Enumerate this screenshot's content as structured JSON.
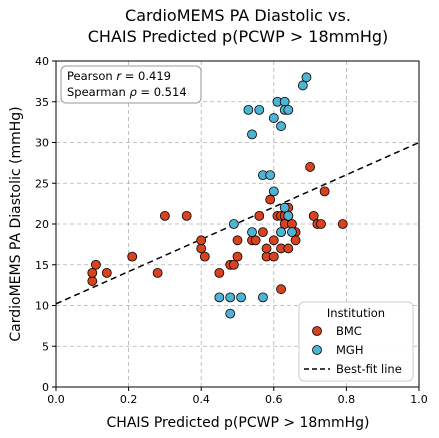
{
  "chart_data": {
    "type": "scatter",
    "title_lines": [
      "CardioMEMS PA Diastolic vs.",
      "CHAIS Predicted p(PCWP > 18mmHg)"
    ],
    "xlabel": "CHAIS Predicted p(PCWP > 18mmHg)",
    "ylabel": "CardioMEMS PA Diastolic (mmHg)",
    "xlim": [
      0.0,
      1.0
    ],
    "ylim": [
      0,
      40
    ],
    "xticks": [
      0.0,
      0.2,
      0.4,
      0.6,
      0.8,
      1.0
    ],
    "xtick_labels": [
      "0.0",
      "0.2",
      "0.4",
      "0.6",
      "0.8",
      "1.0"
    ],
    "yticks": [
      0,
      5,
      10,
      15,
      20,
      25,
      30,
      35,
      40
    ],
    "ytick_labels": [
      "0",
      "5",
      "10",
      "15",
      "20",
      "25",
      "30",
      "35",
      "40"
    ],
    "grid": true,
    "stats": {
      "pearson_prefix": "Pearson ",
      "pearson_symbol": "r",
      "pearson_value": " = 0.419",
      "spearman_prefix": "Spearman ",
      "spearman_symbol": "ρ",
      "spearman_value": " = 0.514"
    },
    "legend": {
      "title": "Institution",
      "placement": "lower-right",
      "entries": [
        "BMC",
        "MGH",
        "Best-fit line"
      ]
    },
    "series": [
      {
        "name": "BMC",
        "color": "#d9421f",
        "points": [
          [
            0.1,
            13
          ],
          [
            0.1,
            14
          ],
          [
            0.11,
            15
          ],
          [
            0.14,
            14
          ],
          [
            0.21,
            16
          ],
          [
            0.28,
            14
          ],
          [
            0.3,
            21
          ],
          [
            0.36,
            21
          ],
          [
            0.4,
            17
          ],
          [
            0.4,
            18
          ],
          [
            0.41,
            16
          ],
          [
            0.45,
            14
          ],
          [
            0.48,
            15
          ],
          [
            0.49,
            15
          ],
          [
            0.5,
            18
          ],
          [
            0.5,
            16
          ],
          [
            0.54,
            18
          ],
          [
            0.55,
            18
          ],
          [
            0.56,
            21
          ],
          [
            0.57,
            19
          ],
          [
            0.58,
            16
          ],
          [
            0.58,
            17
          ],
          [
            0.59,
            23
          ],
          [
            0.6,
            16
          ],
          [
            0.6,
            18
          ],
          [
            0.61,
            21
          ],
          [
            0.62,
            19
          ],
          [
            0.62,
            21
          ],
          [
            0.62,
            17
          ],
          [
            0.62,
            12
          ],
          [
            0.63,
            21
          ],
          [
            0.63,
            20
          ],
          [
            0.64,
            17
          ],
          [
            0.64,
            21
          ],
          [
            0.64,
            22
          ],
          [
            0.65,
            20
          ],
          [
            0.66,
            19
          ],
          [
            0.66,
            18
          ],
          [
            0.7,
            27
          ],
          [
            0.71,
            21
          ],
          [
            0.72,
            20
          ],
          [
            0.73,
            20
          ],
          [
            0.74,
            24
          ],
          [
            0.79,
            20
          ]
        ]
      },
      {
        "name": "MGH",
        "color": "#4fb3d4",
        "points": [
          [
            0.45,
            11
          ],
          [
            0.48,
            11
          ],
          [
            0.48,
            9
          ],
          [
            0.49,
            20
          ],
          [
            0.51,
            11
          ],
          [
            0.53,
            34
          ],
          [
            0.54,
            31
          ],
          [
            0.54,
            19
          ],
          [
            0.56,
            34
          ],
          [
            0.57,
            26
          ],
          [
            0.57,
            11
          ],
          [
            0.59,
            26
          ],
          [
            0.6,
            24
          ],
          [
            0.6,
            33
          ],
          [
            0.61,
            35
          ],
          [
            0.62,
            32
          ],
          [
            0.62,
            19
          ],
          [
            0.63,
            35
          ],
          [
            0.63,
            34
          ],
          [
            0.63,
            22
          ],
          [
            0.64,
            34
          ],
          [
            0.64,
            21
          ],
          [
            0.65,
            19
          ],
          [
            0.68,
            37
          ],
          [
            0.69,
            38
          ]
        ]
      }
    ],
    "fit_line": {
      "name": "Best-fit line",
      "intercept": 10.2,
      "slope": 19.8
    }
  }
}
